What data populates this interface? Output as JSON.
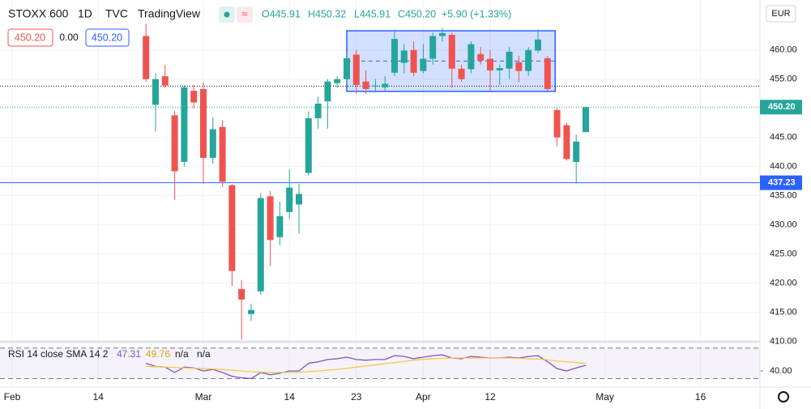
{
  "chart_data": {
    "type": "candlestick",
    "symbol": "STOXX 600",
    "interval": "1D",
    "source": "TVC",
    "platform": "TradingView",
    "ohlc_legend": [
      "O445.91",
      "H450.32",
      "L445.91",
      "C450.20",
      "+5.90 (+1.33%)"
    ],
    "quote_boxes": [
      "450.20",
      "0.00",
      "450.20"
    ],
    "currency": "EUR",
    "categories": [
      "Feb",
      null,
      null,
      null,
      null,
      null,
      null,
      null,
      null,
      "14",
      null,
      null,
      null,
      null,
      null,
      null,
      null,
      null,
      null,
      null,
      "Mar",
      null,
      null,
      null,
      null,
      null,
      null,
      null,
      null,
      "14",
      null,
      null,
      null,
      null,
      null,
      null,
      "23",
      null,
      null,
      null,
      null,
      null,
      null,
      "Apr",
      null,
      null,
      null,
      null,
      null,
      null,
      "12",
      null,
      null,
      null,
      null,
      null,
      null,
      null,
      null,
      null,
      null,
      null,
      "May",
      null,
      null,
      null,
      null,
      null,
      null,
      null,
      null,
      null,
      "16",
      null,
      null,
      null,
      null,
      null
    ],
    "open": [
      null,
      null,
      null,
      null,
      null,
      null,
      null,
      null,
      null,
      null,
      null,
      null,
      null,
      null,
      462.4,
      450.6,
      455.5,
      448.8,
      440.8,
      453,
      453.3,
      441.5,
      446.8,
      436.8,
      419,
      414.7,
      418.6,
      434.9,
      427.9,
      432.2,
      433.5,
      438.9,
      448.3,
      451.2,
      454.3,
      455,
      459.2,
      454.6,
      453.8,
      453.6,
      456.1,
      457.8,
      460,
      456.4,
      458.5,
      462.4,
      462.6,
      456.8,
      456.7,
      459.3,
      458.5,
      456.5,
      456.8,
      457.9,
      456.4,
      459.9,
      458.6,
      449.7,
      447.1,
      440.8,
      445.91,
      null,
      null,
      null,
      null,
      null,
      null,
      null,
      null,
      null,
      null,
      null,
      null,
      null,
      null,
      null,
      null,
      null
    ],
    "high": [
      null,
      null,
      null,
      null,
      null,
      null,
      null,
      null,
      null,
      null,
      null,
      null,
      null,
      null,
      464.5,
      456,
      457.5,
      449.5,
      454,
      454,
      454.5,
      448.5,
      448,
      437,
      420.5,
      416.5,
      435.5,
      435.8,
      434,
      439.5,
      437,
      449.5,
      452,
      455,
      455.5,
      459.5,
      460,
      456.5,
      455,
      455.5,
      463.5,
      461,
      461.5,
      461,
      463,
      463.8,
      463,
      457.5,
      461.5,
      460.5,
      460,
      457.5,
      460.5,
      459,
      460.5,
      463.5,
      459,
      450,
      447.5,
      445.5,
      450.32,
      null,
      null,
      null,
      null,
      null,
      null,
      null,
      null,
      null,
      null,
      null,
      null,
      null,
      null,
      null,
      null,
      null
    ],
    "low": [
      null,
      null,
      null,
      null,
      null,
      null,
      null,
      null,
      null,
      null,
      null,
      null,
      null,
      null,
      454.5,
      446,
      453.5,
      434.3,
      440,
      450,
      437,
      440.5,
      436.5,
      419.5,
      410.3,
      413.5,
      418,
      423,
      426.5,
      431,
      428.5,
      438.5,
      446.5,
      446.5,
      453.5,
      454,
      452.5,
      452.5,
      452.7,
      453,
      455.5,
      456,
      455.5,
      456,
      457.5,
      461.5,
      453.5,
      454.5,
      456,
      457.5,
      453,
      454,
      455,
      454.5,
      455.5,
      459.5,
      453,
      443.5,
      441,
      437.1,
      445.91,
      null,
      null,
      null,
      null,
      null,
      null,
      null,
      null,
      null,
      null,
      null,
      null,
      null,
      null,
      null,
      null,
      null
    ],
    "close": [
      null,
      null,
      null,
      null,
      null,
      null,
      null,
      null,
      null,
      null,
      null,
      null,
      null,
      null,
      455,
      455,
      453.9,
      439.2,
      453.6,
      451,
      441.5,
      446.4,
      437.4,
      422.1,
      417.2,
      415.4,
      434.6,
      427.4,
      431.5,
      436.4,
      435.3,
      448.3,
      450.8,
      454.6,
      455,
      458.6,
      454,
      453.3,
      453.9,
      454.2,
      461.9,
      459.9,
      456.1,
      458.5,
      462.4,
      462.9,
      456.8,
      455,
      461,
      458.2,
      456.5,
      456.9,
      459.7,
      456.4,
      460,
      461.8,
      453.3,
      445,
      441.3,
      444.3,
      450.2,
      null,
      null,
      null,
      null,
      null,
      null,
      null,
      null,
      null,
      null,
      null,
      null,
      null,
      null,
      null,
      null,
      null
    ],
    "up_color": "#26a69a",
    "down_color": "#ef5350",
    "ylim": [
      410,
      468.3
    ],
    "yticks": [
      {
        "value": 410,
        "label": "410.00"
      },
      {
        "value": 415,
        "label": "415.00"
      },
      {
        "value": 420,
        "label": "420.00"
      },
      {
        "value": 425,
        "label": "425.00"
      },
      {
        "value": 430,
        "label": "430.00"
      },
      {
        "value": 435,
        "label": "435.00"
      },
      {
        "value": 440,
        "label": "440.00"
      },
      {
        "value": 445,
        "label": "445.00"
      },
      {
        "value": 450,
        "label": "450.00"
      },
      {
        "value": 455,
        "label": "455.00"
      },
      {
        "value": 460,
        "label": "460.00"
      }
    ],
    "grid": true,
    "price_lines": [
      {
        "value": 453.8,
        "color": "#131722",
        "style": "dotted"
      },
      {
        "value": 450.2,
        "label": "450.20",
        "color": "#26a69a",
        "style": "dotted"
      },
      {
        "value": 437.23,
        "label": "437.23",
        "color": "#2962ff",
        "style": "solid"
      }
    ],
    "box": {
      "from": 35,
      "to": 56.8,
      "top": 463.3,
      "bottom": 452.9,
      "color": "#2962ff"
    },
    "rsi": {
      "title": "RSI 14 close SMA 14 2",
      "legend_values": [
        "47.31",
        "49.76",
        "n/a",
        "n/a"
      ],
      "series": [
        {
          "color": "#7e57c2",
          "values": [
            null,
            null,
            null,
            null,
            null,
            null,
            null,
            null,
            null,
            null,
            null,
            null,
            null,
            null,
            50,
            46,
            45,
            38,
            45,
            44,
            40,
            42,
            38,
            33,
            31,
            30,
            38,
            35,
            37,
            40,
            40,
            50,
            52,
            55,
            56,
            58,
            55,
            54,
            55,
            55,
            60,
            59,
            56,
            58,
            60,
            61,
            57,
            56,
            59,
            58,
            57,
            57,
            58,
            57,
            59,
            60,
            52,
            43,
            40,
            44,
            47.31,
            null,
            null,
            null,
            null,
            null,
            null,
            null,
            null,
            null,
            null,
            null,
            null,
            null,
            null,
            null,
            null,
            null
          ]
        },
        {
          "color": "#f2c94c",
          "values": [
            null,
            null,
            null,
            null,
            null,
            null,
            null,
            null,
            null,
            null,
            null,
            null,
            null,
            null,
            46,
            45.5,
            45,
            44.5,
            44,
            43.5,
            43,
            42.5,
            42,
            41,
            40,
            39,
            38.5,
            38,
            38,
            38,
            38.5,
            39,
            40,
            41,
            42,
            43.5,
            45,
            46.5,
            48,
            49.5,
            51,
            52.5,
            54,
            55,
            56,
            56.5,
            57,
            57,
            57,
            57,
            57,
            57,
            57,
            56.5,
            56,
            55.5,
            54.5,
            53,
            52,
            51,
            49.76,
            null,
            null,
            null,
            null,
            null,
            null,
            null,
            null,
            null,
            null,
            null,
            null,
            null,
            null,
            null,
            null,
            null
          ]
        }
      ],
      "ylim": [
        22,
        75
      ],
      "yticks": [
        {
          "value": 40,
          "label": "40.00"
        }
      ],
      "bands": [
        30,
        70
      ]
    }
  }
}
